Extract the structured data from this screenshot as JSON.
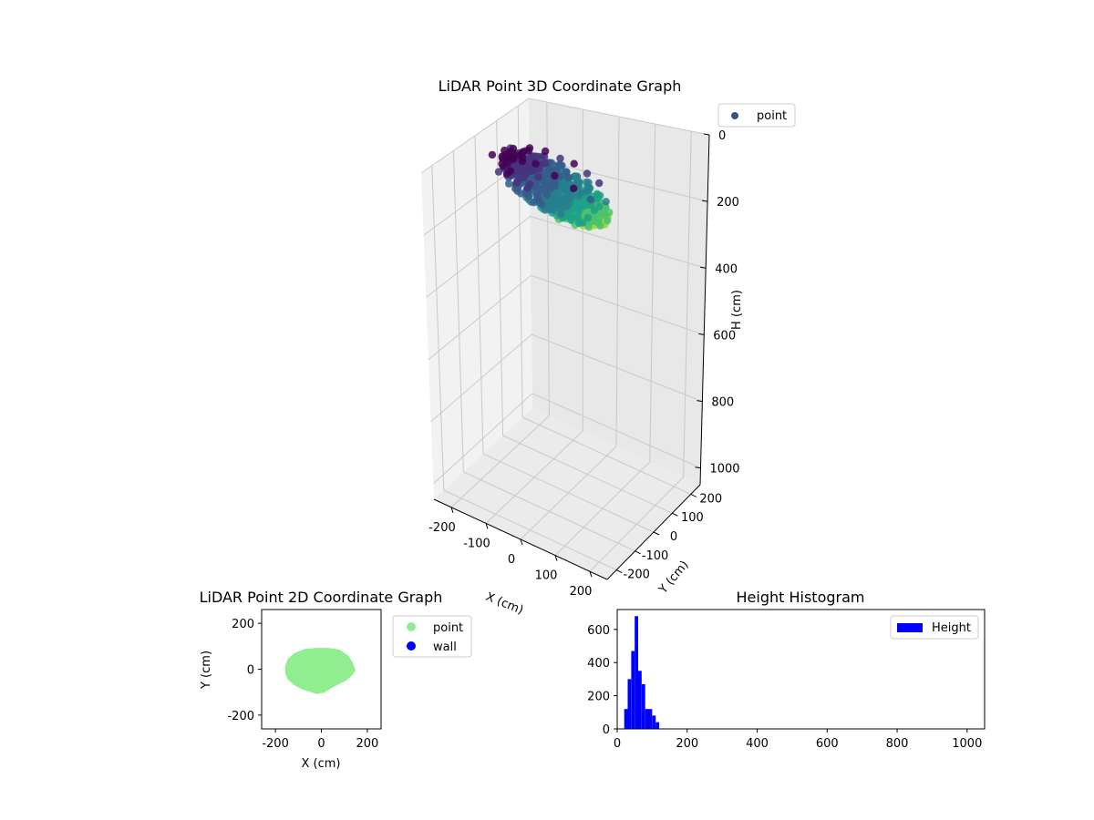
{
  "chart_data": [
    {
      "type": "scatter",
      "projection": "3d",
      "title": "LiDAR Point 3D Coordinate Graph",
      "xlabel": "X (cm)",
      "ylabel": "Y (cm)",
      "zlabel": "H (cm)",
      "x_ticks": [
        "-200",
        "-100",
        "0",
        "100",
        "200"
      ],
      "y_ticks": [
        "-200",
        "-100",
        "0",
        "100",
        "200"
      ],
      "z_ticks": [
        "0",
        "200",
        "400",
        "600",
        "800",
        "1000"
      ],
      "xlim": [
        -250,
        250
      ],
      "ylim": [
        -250,
        250
      ],
      "zlim": [
        0,
        1050
      ],
      "z_inverted": true,
      "colormap": "viridis",
      "grid": true,
      "legend": {
        "placement": "upper-right-outside",
        "entries": [
          {
            "label": "point",
            "color": "#3b518b"
          }
        ]
      },
      "series": [
        {
          "name": "point",
          "sample_points": [
            {
              "x": -170,
              "y": -20,
              "h": 40
            },
            {
              "x": -150,
              "y": 40,
              "h": 45
            },
            {
              "x": -130,
              "y": -60,
              "h": 50
            },
            {
              "x": -110,
              "y": 70,
              "h": 42
            },
            {
              "x": -90,
              "y": -80,
              "h": 55
            },
            {
              "x": -70,
              "y": 80,
              "h": 38
            },
            {
              "x": -50,
              "y": -90,
              "h": 60
            },
            {
              "x": -30,
              "y": 85,
              "h": 44
            },
            {
              "x": -10,
              "y": -95,
              "h": 65
            },
            {
              "x": 10,
              "y": 85,
              "h": 40
            },
            {
              "x": 30,
              "y": -90,
              "h": 70
            },
            {
              "x": 50,
              "y": 80,
              "h": 48
            },
            {
              "x": 70,
              "y": -80,
              "h": 80
            },
            {
              "x": 90,
              "y": 70,
              "h": 52
            },
            {
              "x": 110,
              "y": -60,
              "h": 90
            },
            {
              "x": 125,
              "y": 40,
              "h": 75
            },
            {
              "x": 135,
              "y": -20,
              "h": 100
            },
            {
              "x": 140,
              "y": 10,
              "h": 110
            },
            {
              "x": -120,
              "y": 0,
              "h": 35
            },
            {
              "x": -60,
              "y": 10,
              "h": 30
            },
            {
              "x": 0,
              "y": 0,
              "h": 32
            },
            {
              "x": 60,
              "y": -10,
              "h": 36
            },
            {
              "x": 100,
              "y": 5,
              "h": 60
            },
            {
              "x": -160,
              "y": 20,
              "h": 70
            }
          ]
        }
      ]
    },
    {
      "type": "scatter",
      "title": "LiDAR Point 2D Coordinate Graph",
      "xlabel": "X (cm)",
      "ylabel": "Y (cm)",
      "xlim": [
        -260,
        260
      ],
      "ylim": [
        -260,
        260
      ],
      "x_ticks": [
        "-200",
        "0",
        "200"
      ],
      "y_ticks": [
        "-200",
        "0",
        "200"
      ],
      "legend": {
        "placement": "upper-right-outside",
        "entries": [
          {
            "label": "point",
            "color": "#90ee90"
          },
          {
            "label": "wall",
            "color": "#0000ff"
          }
        ]
      },
      "series": [
        {
          "name": "point",
          "color": "#90ee90",
          "outline": [
            [
              -150,
              10
            ],
            [
              -140,
              40
            ],
            [
              -110,
              65
            ],
            [
              -70,
              80
            ],
            [
              -20,
              85
            ],
            [
              30,
              85
            ],
            [
              75,
              78
            ],
            [
              110,
              55
            ],
            [
              130,
              25
            ],
            [
              140,
              -5
            ],
            [
              125,
              -25
            ],
            [
              100,
              -45
            ],
            [
              70,
              -60
            ],
            [
              40,
              -75
            ],
            [
              10,
              -95
            ],
            [
              -20,
              -100
            ],
            [
              -50,
              -90
            ],
            [
              -80,
              -80
            ],
            [
              -110,
              -65
            ],
            [
              -140,
              -40
            ],
            [
              -150,
              -15
            ]
          ]
        },
        {
          "name": "wall",
          "color": "#0000ff",
          "points": []
        }
      ]
    },
    {
      "type": "bar",
      "subtype": "histogram",
      "title": "Height Histogram",
      "xlim": [
        0,
        1050
      ],
      "ylim": [
        0,
        720
      ],
      "x_ticks": [
        "0",
        "200",
        "400",
        "600",
        "800",
        "1000"
      ],
      "y_ticks": [
        "0",
        "200",
        "400",
        "600"
      ],
      "legend": {
        "placement": "upper-right",
        "entries": [
          {
            "label": "Height",
            "color": "#0000ff"
          }
        ]
      },
      "series": [
        {
          "name": "Height",
          "color": "#0000ff",
          "bin_width": 10,
          "bin_starts": [
            20,
            30,
            40,
            50,
            60,
            70,
            80,
            90,
            100,
            110
          ],
          "counts": [
            120,
            300,
            470,
            680,
            350,
            270,
            120,
            120,
            80,
            40
          ]
        }
      ]
    }
  ]
}
